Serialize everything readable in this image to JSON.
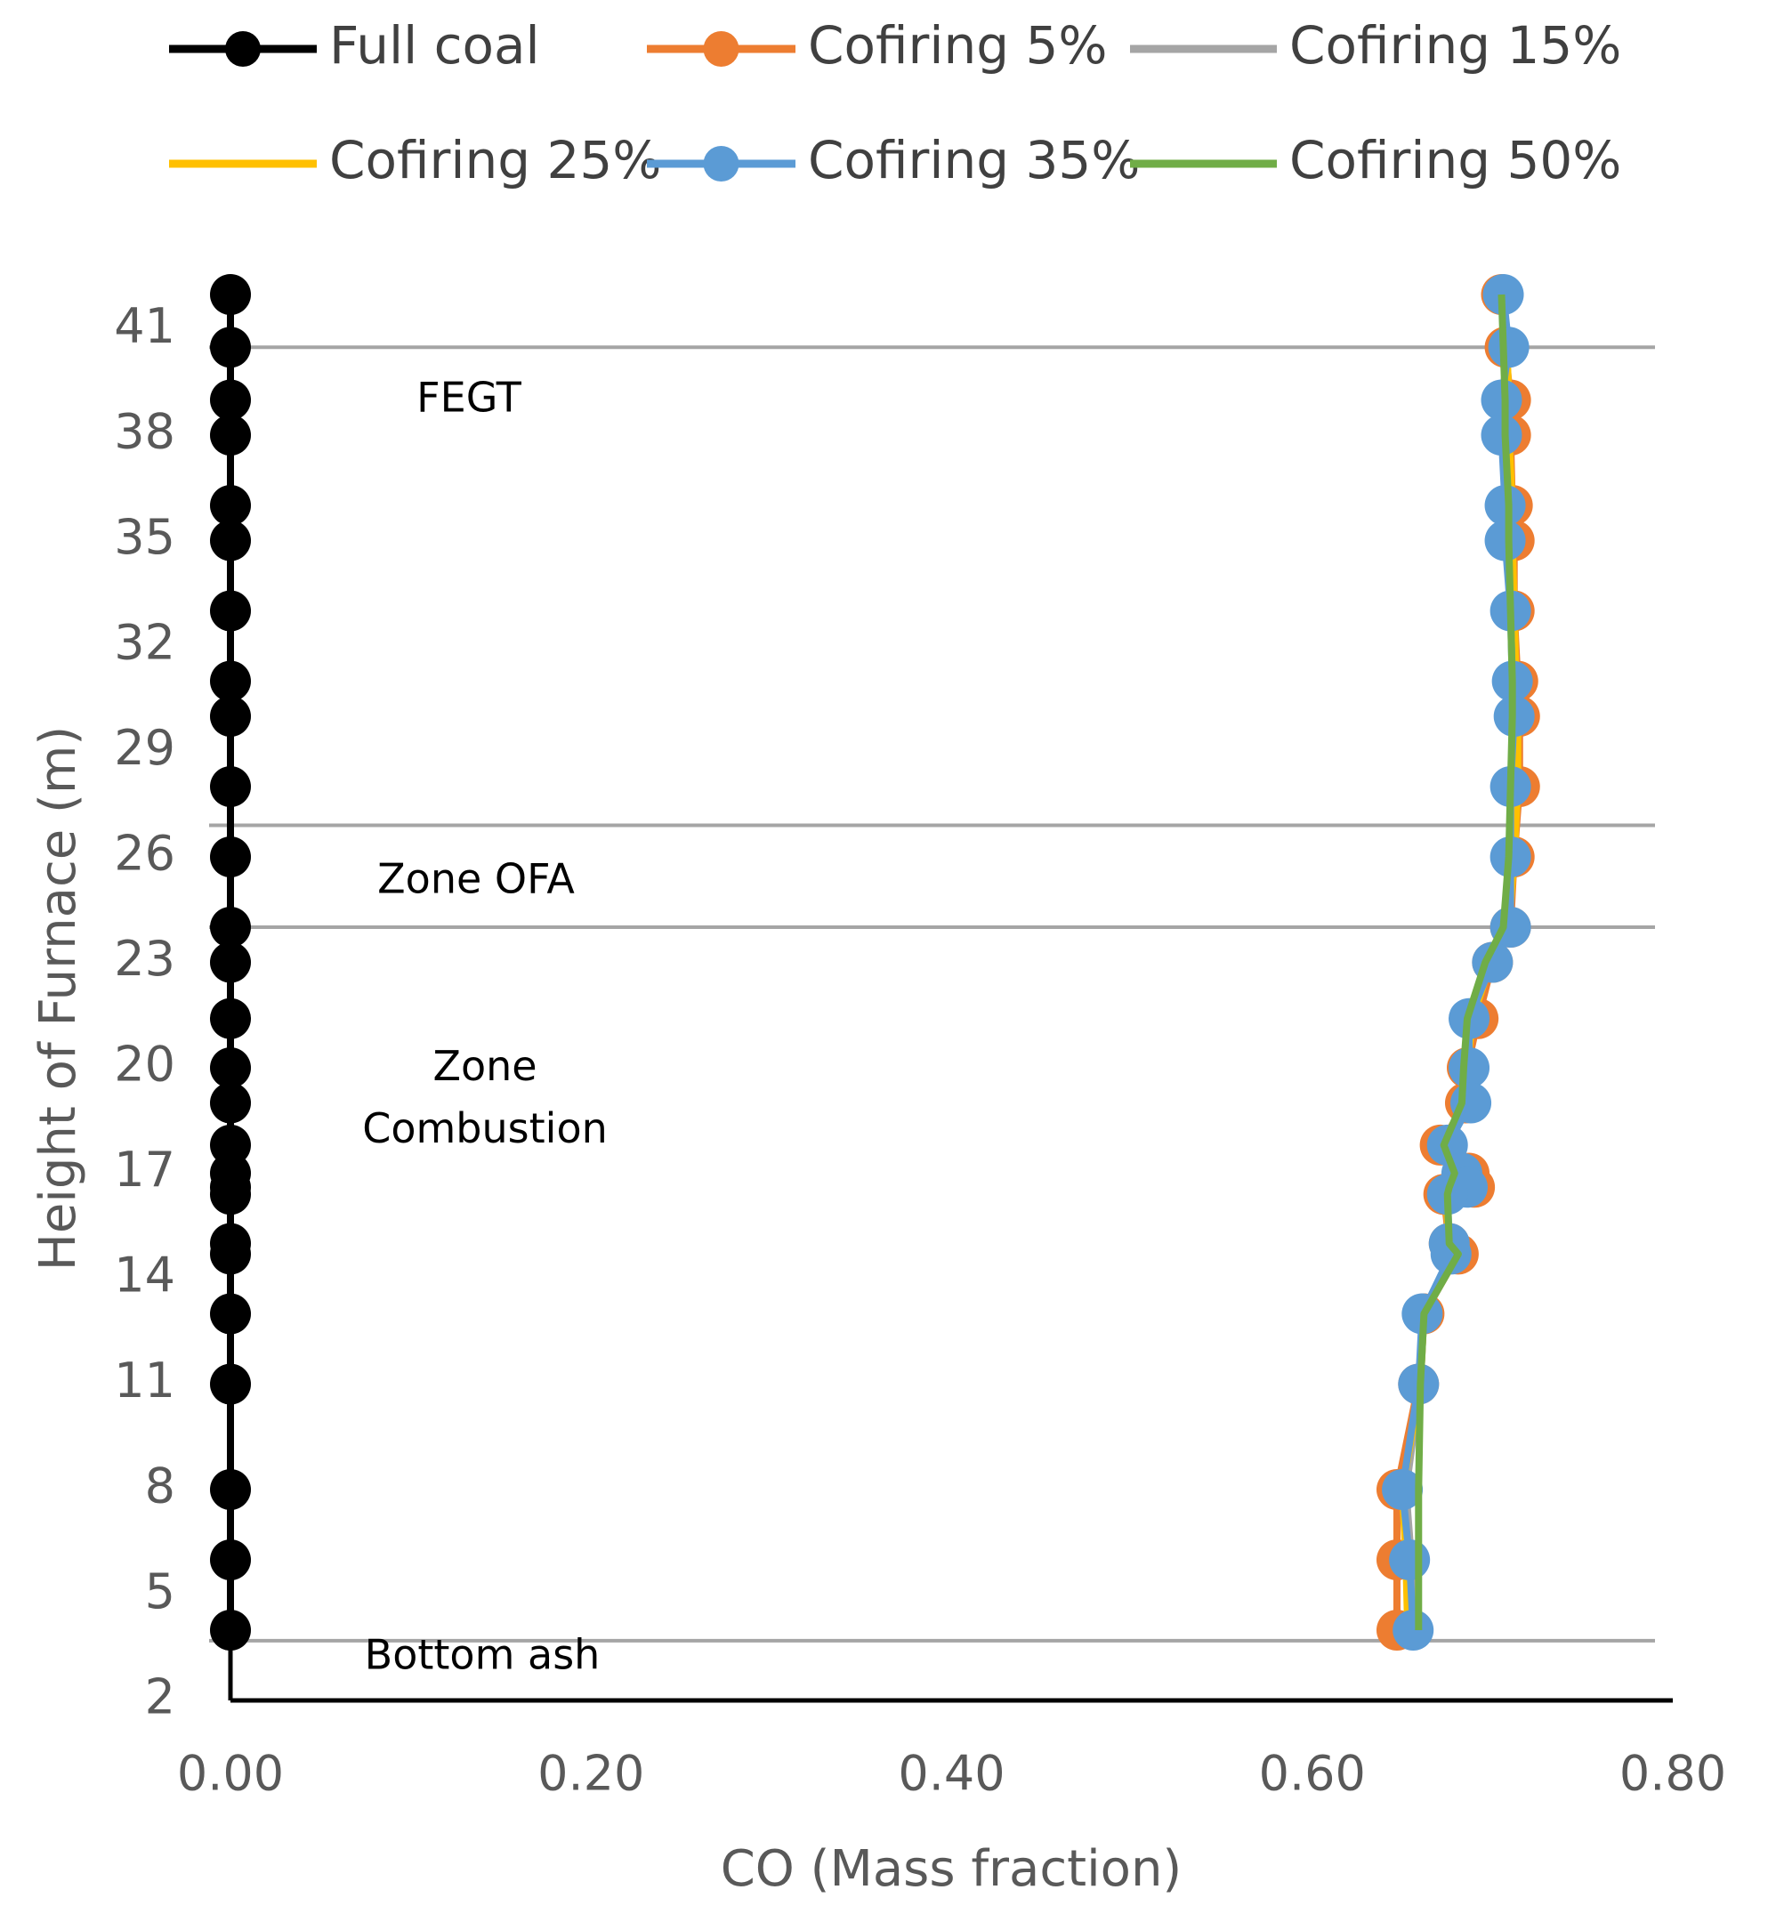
{
  "chart_data": {
    "type": "line",
    "orientation": "horizontal",
    "x_label": "CO (Mass fraction)",
    "y_label": "Height of Furnace (m)",
    "xlim": [
      0,
      0.8
    ],
    "xticks": [
      {
        "value": 0,
        "label": "0.00"
      },
      {
        "value": 0.2,
        "label": "0.20"
      },
      {
        "value": 0.4,
        "label": "0.40"
      },
      {
        "value": 0.6,
        "label": "0.60"
      },
      {
        "value": 0.8,
        "label": "0.80"
      }
    ],
    "ylim": [
      2,
      42
    ],
    "yticks": [
      2,
      5,
      8,
      11,
      14,
      17,
      20,
      23,
      26,
      29,
      32,
      35,
      38,
      41
    ],
    "y": [
      42,
      40.5,
      39,
      38,
      36,
      35,
      33,
      31,
      30,
      28,
      26,
      24,
      23,
      21.4,
      20,
      19,
      17.8,
      17,
      16.6,
      16.4,
      15,
      14.7,
      13,
      11,
      8,
      6,
      4
    ],
    "series": [
      {
        "name": "Full coal",
        "color": "#000000",
        "markers": true,
        "values": [
          0,
          0,
          0,
          0,
          0,
          0,
          0,
          0,
          0,
          0,
          0,
          0,
          0,
          0,
          0,
          0,
          0,
          0,
          0,
          0,
          0,
          0,
          0,
          0,
          0,
          0,
          0
        ]
      },
      {
        "name": "Cofiring 5%",
        "color": "#ed7d31",
        "markers": true,
        "values": [
          0.705,
          0.707,
          0.71,
          0.71,
          0.711,
          0.712,
          0.712,
          0.714,
          0.715,
          0.715,
          0.712,
          0.71,
          0.7,
          0.692,
          0.686,
          0.685,
          0.671,
          0.687,
          0.69,
          0.673,
          0.676,
          0.681,
          0.662,
          0.659,
          0.647,
          0.647,
          0.647
        ]
      },
      {
        "name": "Cofiring 15%",
        "color": "#a5a5a5",
        "markers": false,
        "values": [
          0.705,
          0.708,
          0.708,
          0.708,
          0.709,
          0.71,
          0.711,
          0.712,
          0.713,
          0.712,
          0.711,
          0.708,
          0.698,
          0.688,
          0.686,
          0.685,
          0.673,
          0.683,
          0.686,
          0.674,
          0.676,
          0.68,
          0.662,
          0.66,
          0.652,
          0.655,
          0.656
        ]
      },
      {
        "name": "Cofiring 25%",
        "color": "#ffc000",
        "markers": false,
        "values": [
          0.705,
          0.708,
          0.709,
          0.709,
          0.711,
          0.711,
          0.712,
          0.713,
          0.714,
          0.714,
          0.712,
          0.709,
          0.699,
          0.689,
          0.686,
          0.685,
          0.672,
          0.684,
          0.688,
          0.674,
          0.676,
          0.68,
          0.662,
          0.66,
          0.65,
          0.652,
          0.653
        ]
      },
      {
        "name": "Cofiring 35%",
        "color": "#5b9bd5",
        "markers": true,
        "values": [
          0.706,
          0.709,
          0.705,
          0.705,
          0.707,
          0.707,
          0.71,
          0.711,
          0.712,
          0.71,
          0.71,
          0.71,
          0.7,
          0.687,
          0.687,
          0.688,
          0.675,
          0.683,
          0.686,
          0.675,
          0.676,
          0.677,
          0.661,
          0.659,
          0.65,
          0.654,
          0.656
        ]
      },
      {
        "name": "Cofiring 50%",
        "color": "#70ad47",
        "markers": false,
        "values": [
          0.705,
          0.706,
          0.707,
          0.707,
          0.709,
          0.709,
          0.71,
          0.711,
          0.711,
          0.71,
          0.709,
          0.706,
          0.696,
          0.686,
          0.684,
          0.683,
          0.673,
          0.679,
          0.676,
          0.675,
          0.676,
          0.681,
          0.662,
          0.66,
          0.659,
          0.659,
          0.659
        ]
      }
    ],
    "reference_lines": [
      {
        "value": 40.5,
        "label": "FEGT"
      },
      {
        "value": 26.9,
        "label": "Zone OFA"
      },
      {
        "value": 24.0,
        "label": "Zone Combustion"
      },
      {
        "value": 3.7,
        "label": "Bottom ash"
      }
    ]
  }
}
